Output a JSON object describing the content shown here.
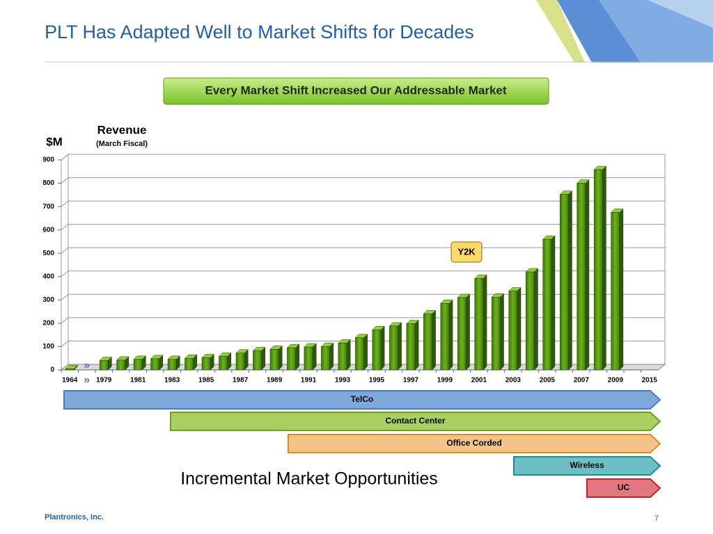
{
  "title": "PLT Has Adapted Well to Market Shifts for Decades",
  "banner": "Every Market Shift Increased Our Addressable Market",
  "chart_data": {
    "type": "bar",
    "title": "Revenue",
    "subtitle": "(March Fiscal)",
    "y_label": "$M",
    "categories": [
      "1964",
      null,
      "1979",
      null,
      "1981",
      null,
      "1983",
      null,
      "1985",
      null,
      "1987",
      null,
      "1989",
      null,
      "1991",
      null,
      "1993",
      null,
      "1995",
      null,
      "1997",
      null,
      "1999",
      null,
      "2001",
      null,
      "2003",
      null,
      "2005",
      null,
      "2007",
      null,
      "2009",
      null,
      "2015"
    ],
    "values": [
      5,
      null,
      40,
      42,
      45,
      48,
      45,
      50,
      52,
      58,
      72,
      82,
      88,
      95,
      98,
      100,
      115,
      138,
      172,
      188,
      198,
      240,
      285,
      310,
      392,
      312,
      338,
      420,
      560,
      752,
      800,
      858,
      675,
      null,
      null
    ],
    "color": "#5a9a12",
    "ylim": [
      0,
      900
    ],
    "yticks": [
      0,
      100,
      200,
      300,
      400,
      500,
      600,
      700,
      800,
      900
    ],
    "grid": true,
    "axis_break": "»",
    "annotation": "Y2K"
  },
  "markets": [
    "TelCo",
    "Contact Center",
    "Office Corded",
    "Wireless",
    "UC"
  ],
  "caption": "Incremental Market Opportunities",
  "footer": "Plantronics, Inc.",
  "page_number": "7"
}
